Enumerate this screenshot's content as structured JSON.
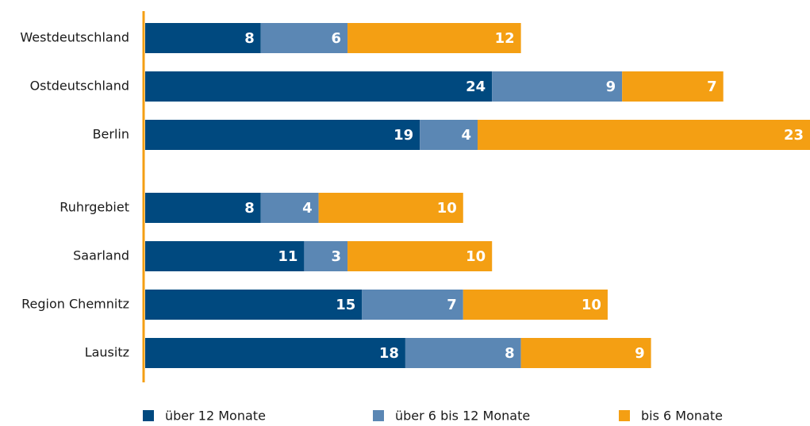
{
  "chart_data": {
    "type": "stacked-bar-horizontal",
    "categories": [
      "Westdeutschland",
      "Ostdeutschland",
      "Berlin",
      "Ruhrgebiet",
      "Saarland",
      "Region Chemnitz",
      "Lausitz"
    ],
    "series": [
      {
        "name": "über 12 Monate",
        "color": "#00497f",
        "values": [
          8,
          24,
          19,
          8,
          11,
          15,
          18
        ]
      },
      {
        "name": "über 6 bis 12 Monate",
        "color": "#5b87b4",
        "values": [
          6,
          9,
          4,
          4,
          3,
          7,
          8
        ]
      },
      {
        "name": "bis 6 Monate",
        "color": "#f49f13",
        "values": [
          12,
          7,
          23,
          10,
          10,
          10,
          9
        ]
      }
    ],
    "axis_color": "#f49f13"
  }
}
